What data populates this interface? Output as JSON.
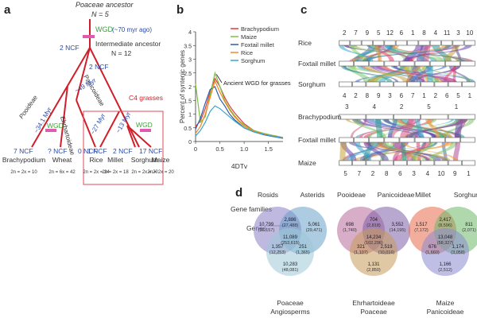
{
  "panel_a": {
    "letter": "a",
    "root_label": "Poaceae ancestor",
    "root_n": "N = 5",
    "wgd_label": "WGD",
    "wgd_age": "(~70 myr ago)",
    "intermediate_label": "Intermediate ancestor",
    "intermediate_n": "N = 12",
    "ncf_2_left": "2 NCF",
    "ncf_2_right": "2 NCF",
    "panicoideae": "Panicoideae",
    "pooideae": "Pooideae",
    "ehrhartoideae": "Ehrhartoideae",
    "myr_49": "~49 Myr",
    "myr_34": "~34.1 Myr",
    "myr_27": "~27 Myr",
    "myr_13": "~13 Myr",
    "wgd_wheat": "WGD",
    "wgd_maize": "WGD",
    "c4_label": "C4 grasses",
    "leaves": [
      {
        "ncf": "7 NCF",
        "name": "Brachypodium",
        "chrom": "2n = 2x = 10"
      },
      {
        "ncf": "? NCF",
        "name": "Wheat",
        "chrom": "2n = 6x = 42"
      },
      {
        "ncf": "0 NCF",
        "name": "Rice",
        "chrom": "2n = 2x = 24"
      },
      {
        "ncf": "1 NCF",
        "name": "Millet",
        "chrom": "2n = 2x = 18"
      },
      {
        "ncf": "2 NCF",
        "name": "Sorghum",
        "chrom": "2n = 2x = 20"
      },
      {
        "ncf": "17 NCF",
        "name": "Maize",
        "chrom": "2n = 2x = 20"
      }
    ]
  },
  "panel_b": {
    "letter": "b",
    "annotation": "Ancient WGD for grasses"
  },
  "chart_data": {
    "type": "line",
    "title": "",
    "xlabel": "4DTv",
    "ylabel": "Percent of syntenic genes",
    "xlim": [
      0,
      1.8
    ],
    "ylim": [
      0,
      4
    ],
    "xticks": [
      "0",
      "0.5",
      "1.0",
      "1.5"
    ],
    "yticks": [
      "0",
      "0.5",
      "1",
      "1.5",
      "2",
      "2.5",
      "3",
      "3.5",
      "4"
    ],
    "legend_position": "top-right",
    "x": [
      0,
      0.1,
      0.2,
      0.3,
      0.4,
      0.5,
      0.6,
      0.7,
      0.8,
      0.9,
      1.0,
      1.2,
      1.4,
      1.6,
      1.8
    ],
    "series": [
      {
        "name": "Brachypodium",
        "color": "#e03a3a",
        "values": [
          0.55,
          0.75,
          1.2,
          1.8,
          2.3,
          2.0,
          1.6,
          1.3,
          1.05,
          0.85,
          0.65,
          0.4,
          0.25,
          0.18,
          0.12
        ]
      },
      {
        "name": "Maize",
        "color": "#7bc043",
        "values": [
          2.1,
          0.7,
          0.9,
          1.7,
          2.5,
          2.0,
          1.5,
          1.2,
          0.95,
          0.75,
          0.6,
          0.4,
          0.3,
          0.22,
          0.15
        ]
      },
      {
        "name": "Foxtail millet",
        "color": "#2c5ea8",
        "values": [
          0.45,
          0.85,
          1.4,
          1.9,
          2.0,
          1.55,
          1.3,
          1.0,
          0.8,
          0.65,
          0.5,
          0.35,
          0.25,
          0.18,
          0.12
        ]
      },
      {
        "name": "Rice",
        "color": "#f08a24",
        "values": [
          0.3,
          0.55,
          1.0,
          1.6,
          2.2,
          1.8,
          1.45,
          1.15,
          0.9,
          0.72,
          0.55,
          0.38,
          0.28,
          0.2,
          0.14
        ]
      },
      {
        "name": "Sorghum",
        "color": "#3aa6c9",
        "values": [
          0.2,
          0.4,
          0.7,
          1.1,
          1.3,
          1.2,
          1.05,
          0.9,
          0.75,
          0.62,
          0.5,
          0.35,
          0.26,
          0.19,
          0.13
        ]
      }
    ]
  },
  "panel_c": {
    "letter": "c",
    "top_labels": [
      "Rice",
      "Foxtail millet",
      "Sorghum"
    ],
    "bottom_labels": [
      "Brachypodium",
      "Foxtail millet",
      "Maize"
    ],
    "top_numbers": [
      "2",
      "7",
      "9",
      "5",
      "12",
      "6",
      "1",
      "8",
      "4",
      "11",
      "3",
      "10"
    ],
    "mid_numbers": [
      "4",
      "2",
      "8",
      "9",
      "3",
      "6",
      "7",
      "1",
      "2",
      "6",
      "5",
      "1"
    ],
    "brachy_numbers": [
      "3",
      "4",
      "2",
      "5",
      "1"
    ],
    "bottom_numbers": [
      "5",
      "7",
      "2",
      "8",
      "6",
      "3",
      "4",
      "10",
      "9",
      "1"
    ],
    "band_colors": [
      "#5a4aa0",
      "#e83d6e",
      "#7fc86a",
      "#3a6fc4",
      "#d65a8a",
      "#2e9b8f",
      "#c8a43a",
      "#6a3fb0",
      "#f09a3a",
      "#3aa6c9",
      "#8bd35c",
      "#b24a9a"
    ]
  },
  "panel_d": {
    "letter": "d",
    "row_labels": [
      "Gene families",
      "Genes"
    ],
    "venn1": {
      "labels": [
        "Rosids",
        "Asterids",
        "Poaceae",
        "Angiosperms"
      ],
      "colors": [
        "#8a7fc4",
        "#6aa0c8",
        "#9ec9d8"
      ],
      "values": [
        {
          "text": "10,799",
          "sub": "(36,157)"
        },
        {
          "text": "2,886",
          "sub": "(27,488)"
        },
        {
          "text": "5,061",
          "sub": "(29,471)"
        },
        {
          "text": "11,089",
          "sub": "(253,615)"
        },
        {
          "text": "1,357",
          "sub": "(12,253)"
        },
        {
          "text": "251",
          "sub": "(1,365)"
        },
        {
          "text": "10,283",
          "sub": "(48,081)"
        }
      ]
    },
    "venn2": {
      "labels": [
        "Pooideae",
        "Panicoideae",
        "Ehrhartoideae",
        "Poaceae"
      ],
      "colors": [
        "#b66a9a",
        "#7d5fa8",
        "#c79b5a"
      ],
      "values": [
        {
          "text": "698",
          "sub": "(1,740)"
        },
        {
          "text": "704",
          "sub": "(2,818)"
        },
        {
          "text": "3,552",
          "sub": "(14,195)"
        },
        {
          "text": "14,234",
          "sub": "(102,296)"
        },
        {
          "text": "321",
          "sub": "(1,107)"
        },
        {
          "text": "2,519",
          "sub": "(10,016)"
        },
        {
          "text": "1,131",
          "sub": "(2,850)"
        }
      ]
    },
    "venn3": {
      "labels": [
        "Millet",
        "Sorghum",
        "Maize",
        "Panicoideae"
      ],
      "colors": [
        "#e86a4a",
        "#6fb86a",
        "#8a8ad0"
      ],
      "values": [
        {
          "text": "1,517",
          "sub": "(7,172)"
        },
        {
          "text": "2,417",
          "sub": "(8,596)"
        },
        {
          "text": "811",
          "sub": "(2,071)"
        },
        {
          "text": "13,048",
          "sub": "(58,327)"
        },
        {
          "text": "676",
          "sub": "(1,660)"
        },
        {
          "text": "1,174",
          "sub": "(3,058)"
        },
        {
          "text": "1,166",
          "sub": "(2,512)"
        }
      ]
    }
  }
}
